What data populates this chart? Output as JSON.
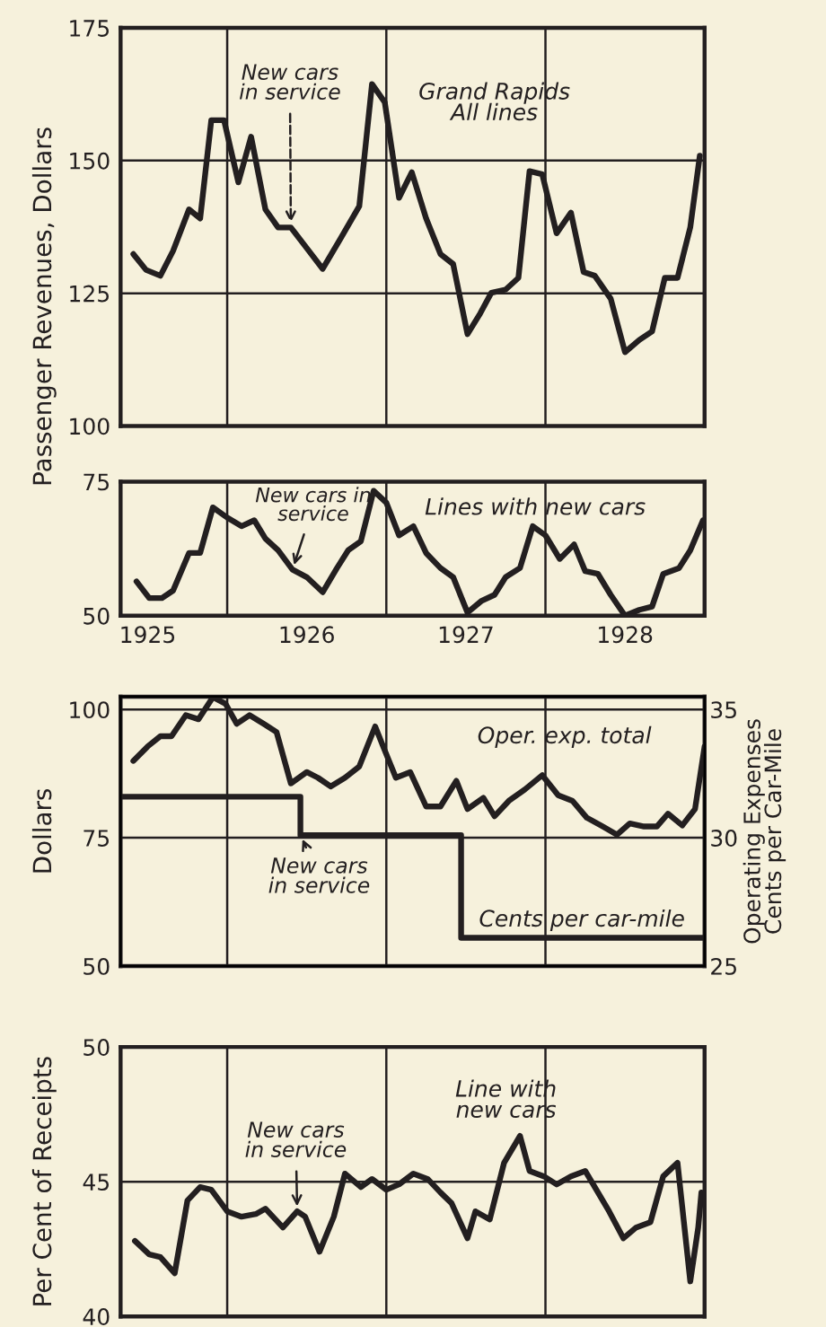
{
  "chart_data": [
    {
      "type": "line",
      "ylabel": "Passenger Revenues, Dollars",
      "xlim": [
        1925.33,
        1929.0
      ],
      "ylim": [
        100,
        175
      ],
      "yticks": [
        100,
        125,
        150,
        175
      ],
      "tick_labels": "y",
      "grid": "y",
      "ref_lines": [
        {
          "axis": "x",
          "value": 1926
        },
        {
          "axis": "x",
          "value": 1927
        },
        {
          "axis": "x",
          "value": 1928
        }
      ],
      "x": [
        1925.41,
        1925.49,
        1925.58,
        1925.66,
        1925.76,
        1925.83,
        1925.9,
        1925.98,
        1926.07,
        1926.15,
        1926.24,
        1926.32,
        1926.4,
        1926.5,
        1926.6,
        1926.71,
        1926.83,
        1926.91,
        1926.99,
        1927.08,
        1927.16,
        1927.25,
        1927.34,
        1927.42,
        1927.51,
        1927.59,
        1927.66,
        1927.75,
        1927.83,
        1927.9,
        1927.98,
        1928.07,
        1928.16,
        1928.24,
        1928.31,
        1928.41,
        1928.5,
        1928.59,
        1928.67,
        1928.75,
        1928.83,
        1928.91,
        1928.97
      ],
      "series": [
        {
          "name": "Grand Rapids\nAll lines",
          "color": "#231f20",
          "values": [
            132.4,
            129.4,
            128.3,
            133,
            140.8,
            139.1,
            157.6,
            157.6,
            145.9,
            154.5,
            140.8,
            137.4,
            137.4,
            133.5,
            129.6,
            135.2,
            141.4,
            164.4,
            161,
            143,
            147.8,
            139.1,
            132.4,
            130.5,
            117.3,
            121.2,
            125.1,
            125.7,
            127.9,
            148,
            147.4,
            136.3,
            140.2,
            129,
            128.3,
            124,
            113.9,
            116.2,
            117.8,
            127.9,
            127.9,
            137.4,
            150.9
          ]
        }
      ],
      "annotations": [
        {
          "text": "New cars\nin service",
          "x": 1926.4,
          "y": 137.4
        }
      ]
    },
    {
      "type": "line",
      "xlim": [
        1925.33,
        1929.0
      ],
      "ylim": [
        50,
        75
      ],
      "yticks": [
        50,
        75
      ],
      "xticks": [
        {
          "value": 1925.5,
          "label": "1925"
        },
        {
          "value": 1926.5,
          "label": "1926"
        },
        {
          "value": 1927.5,
          "label": "1927"
        },
        {
          "value": 1928.5,
          "label": "1928"
        }
      ],
      "ref_lines": [
        {
          "axis": "x",
          "value": 1926
        },
        {
          "axis": "x",
          "value": 1927
        },
        {
          "axis": "x",
          "value": 1928
        }
      ],
      "x": [
        1925.43,
        1925.51,
        1925.59,
        1925.66,
        1925.76,
        1925.83,
        1925.91,
        1926.0,
        1926.09,
        1926.17,
        1926.24,
        1926.32,
        1926.41,
        1926.5,
        1926.6,
        1926.69,
        1926.76,
        1926.84,
        1926.92,
        1927.0,
        1927.08,
        1927.17,
        1927.25,
        1927.34,
        1927.42,
        1927.51,
        1927.6,
        1927.68,
        1927.75,
        1927.84,
        1927.92,
        1928.0,
        1928.09,
        1928.18,
        1928.25,
        1928.33,
        1928.41,
        1928.5,
        1928.59,
        1928.67,
        1928.74,
        1928.84,
        1928.91,
        1928.99
      ],
      "series": [
        {
          "name": "Lines with new cars",
          "color": "#231f20",
          "values": [
            56.4,
            53.3,
            53.3,
            54.7,
            61.7,
            61.7,
            70.2,
            68.3,
            66.7,
            67.8,
            64.4,
            62.2,
            58.6,
            57.2,
            54.4,
            58.9,
            62.2,
            63.9,
            73.3,
            71.1,
            65,
            66.7,
            61.7,
            58.9,
            57.2,
            50.6,
            52.8,
            53.9,
            57.2,
            58.9,
            66.7,
            65,
            60.6,
            63.3,
            58.3,
            57.8,
            53.9,
            50,
            51.1,
            51.7,
            57.8,
            58.9,
            62.2,
            67.8
          ]
        }
      ],
      "annotations": [
        {
          "text": "New cars in\nservice",
          "x": 1926.41,
          "y": 58.6
        }
      ]
    },
    {
      "type": "line",
      "ylabel": "Dollars",
      "y2label": "Operating Expenses\nCents per Car-Mile",
      "xlim": [
        1925.33,
        1929.0
      ],
      "ylim": [
        50,
        102.5
      ],
      "yticks": [
        50,
        75,
        100
      ],
      "y2lim": [
        25,
        35.5
      ],
      "y2ticks": [
        25,
        30,
        35
      ],
      "tick_labels": "y",
      "grid": "y",
      "ref_lines": [
        {
          "axis": "x",
          "value": 1926
        },
        {
          "axis": "x",
          "value": 1927
        },
        {
          "axis": "x",
          "value": 1928
        }
      ],
      "x": [
        1925.41,
        1925.5,
        1925.58,
        1925.65,
        1925.74,
        1925.82,
        1925.91,
        1925.99,
        1926.06,
        1926.14,
        1926.23,
        1926.31,
        1926.4,
        1926.5,
        1926.57,
        1926.65,
        1926.74,
        1926.83,
        1926.93,
        1926.98,
        1927.06,
        1927.15,
        1927.25,
        1927.34,
        1927.44,
        1927.51,
        1927.61,
        1927.68,
        1927.77,
        1927.87,
        1927.98,
        1928.08,
        1928.17,
        1928.26,
        1928.36,
        1928.45,
        1928.53,
        1928.62,
        1928.7,
        1928.77,
        1928.86,
        1928.94,
        1929.0
      ],
      "series": [
        {
          "name": "Oper. exp. total",
          "color": "#231f20",
          "values": [
            90,
            92.8,
            94.8,
            94.8,
            98.9,
            98.1,
            102.4,
            101.1,
            97.2,
            98.9,
            97.2,
            95.6,
            85.6,
            87.8,
            86.7,
            85,
            86.7,
            88.9,
            96.7,
            92.8,
            86.7,
            87.8,
            81.1,
            81.1,
            86.1,
            80.6,
            82.8,
            79.2,
            82.2,
            84.4,
            87.2,
            83.3,
            82.2,
            78.9,
            77.2,
            75.6,
            77.8,
            77.2,
            77.2,
            79.7,
            77.4,
            80.6,
            92.8
          ]
        },
        {
          "name": "Cents per car-mile",
          "type": "step",
          "axis": "y2",
          "color": "#231f20",
          "x": [
            1925.33,
            1926.46,
            1927.47,
            1929.0
          ],
          "values": [
            31.6,
            30.1,
            26.1,
            26.1
          ]
        }
      ],
      "annotations": [
        {
          "text": "New cars\nin service",
          "x": 1926.46,
          "y": 75.6
        }
      ]
    },
    {
      "type": "line",
      "ylabel": "Per Cent of Receipts",
      "xlim": [
        1925.33,
        1929.0
      ],
      "ylim": [
        40,
        50
      ],
      "yticks": [
        40,
        45,
        50
      ],
      "tick_labels": "y",
      "grid": "y",
      "ref_lines": [
        {
          "axis": "x",
          "value": 1926
        },
        {
          "axis": "x",
          "value": 1927
        },
        {
          "axis": "x",
          "value": 1928
        }
      ],
      "x": [
        1925.42,
        1925.51,
        1925.58,
        1925.67,
        1925.75,
        1925.83,
        1925.9,
        1926.0,
        1926.09,
        1926.18,
        1926.24,
        1926.35,
        1926.44,
        1926.49,
        1926.58,
        1926.67,
        1926.74,
        1926.84,
        1926.91,
        1927.0,
        1927.08,
        1927.17,
        1927.26,
        1927.34,
        1927.41,
        1927.51,
        1927.56,
        1927.65,
        1927.74,
        1927.84,
        1927.9,
        1927.99,
        1928.07,
        1928.16,
        1928.25,
        1928.32,
        1928.4,
        1928.49,
        1928.57,
        1928.66,
        1928.74,
        1928.83,
        1928.91,
        1928.96,
        1928.98
      ],
      "series": [
        {
          "name": "Line with\nnew cars",
          "color": "#231f20",
          "values": [
            42.8,
            42.3,
            42.2,
            41.6,
            44.3,
            44.8,
            44.7,
            43.9,
            43.7,
            43.8,
            44,
            43.3,
            43.9,
            43.7,
            42.4,
            43.7,
            45.3,
            44.8,
            45.1,
            44.7,
            44.9,
            45.3,
            45.1,
            44.6,
            44.2,
            42.9,
            43.9,
            43.6,
            45.7,
            46.7,
            45.4,
            45.2,
            44.9,
            45.2,
            45.4,
            44.7,
            43.9,
            42.9,
            43.3,
            43.5,
            45.2,
            45.7,
            41.3,
            43.3,
            44.6
          ]
        }
      ],
      "annotations": [
        {
          "text": "New cars\nin service",
          "x": 1926.44,
          "y": 43.9
        }
      ]
    }
  ]
}
